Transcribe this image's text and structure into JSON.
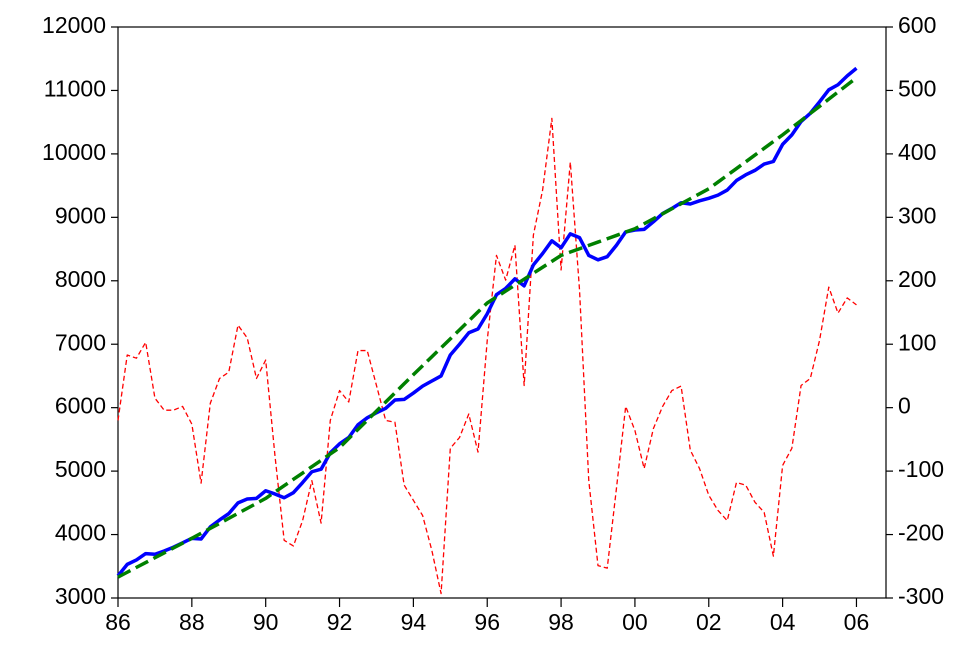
{
  "chart_data": {
    "type": "line",
    "x": [
      1986,
      1986.25,
      1986.5,
      1986.75,
      1987,
      1987.25,
      1987.5,
      1987.75,
      1988,
      1988.25,
      1988.5,
      1988.75,
      1989,
      1989.25,
      1989.5,
      1989.75,
      1990,
      1990.25,
      1990.5,
      1990.75,
      1991,
      1991.25,
      1991.5,
      1991.75,
      1992,
      1992.25,
      1992.5,
      1992.75,
      1993,
      1993.25,
      1993.5,
      1993.75,
      1994,
      1994.25,
      1994.5,
      1994.75,
      1995,
      1995.25,
      1995.5,
      1995.75,
      1996,
      1996.25,
      1996.5,
      1996.75,
      1997,
      1997.25,
      1997.5,
      1997.75,
      1998,
      1998.25,
      1998.5,
      1998.75,
      1999,
      1999.25,
      1999.5,
      1999.75,
      2000,
      2000.25,
      2000.5,
      2000.75,
      2001,
      2001.25,
      2001.5,
      2001.75,
      2002,
      2002.25,
      2002.5,
      2002.75,
      2003,
      2003.25,
      2003.5,
      2003.75,
      2004,
      2004.25,
      2004.5,
      2004.75,
      2005,
      2005.25,
      2005.5,
      2005.75,
      2006
    ],
    "series": [
      {
        "color": "#ff0000",
        "line_style": "short-dash",
        "axis": "y2",
        "values": [
          -20,
          83,
          78,
          103,
          15,
          -4,
          -4,
          2,
          -26,
          -119,
          7,
          46,
          56,
          130,
          110,
          46,
          75,
          -75,
          -209,
          -218,
          -178,
          -115,
          -182,
          -20,
          27,
          9,
          90,
          90,
          35,
          -20,
          -23,
          -122,
          -146,
          -170,
          -225,
          -293,
          -64,
          -47,
          -10,
          -70,
          106,
          240,
          201,
          256,
          35,
          272,
          343,
          456,
          217,
          387,
          185,
          -115,
          -249,
          -253,
          -127,
          2,
          -36,
          -96,
          -33,
          2,
          27,
          34,
          -67,
          -96,
          -138,
          -162,
          -178,
          -118,
          -122,
          -149,
          -165,
          -234,
          -91,
          -64,
          35,
          46,
          106,
          190,
          149,
          173,
          162
        ]
      },
      {
        "color": "#0000ff",
        "line_style": "solid",
        "axis": "y",
        "values": [
          3350,
          3530,
          3600,
          3700,
          3690,
          3740,
          3800,
          3870,
          3940,
          3930,
          4120,
          4230,
          4330,
          4500,
          4560,
          4570,
          4690,
          4640,
          4580,
          4660,
          4820,
          4990,
          5030,
          5290,
          5430,
          5530,
          5730,
          5840,
          5920,
          5990,
          6120,
          6130,
          6230,
          6340,
          6420,
          6500,
          6830,
          7000,
          7180,
          7240,
          7480,
          7780,
          7880,
          8030,
          7920,
          8250,
          8430,
          8630,
          8520,
          8740,
          8680,
          8400,
          8330,
          8380,
          8560,
          8770,
          8800,
          8810,
          8930,
          9060,
          9140,
          9230,
          9210,
          9260,
          9300,
          9350,
          9430,
          9580,
          9670,
          9740,
          9840,
          9880,
          10150,
          10300,
          10510,
          10640,
          10820,
          11010,
          11090,
          11230,
          11350
        ]
      },
      {
        "color": "#008000",
        "line_style": "long-dash",
        "axis": "y",
        "values": [
          3330,
          3406,
          3483,
          3559,
          3635,
          3711,
          3788,
          3864,
          3940,
          4019,
          4098,
          4176,
          4255,
          4334,
          4413,
          4491,
          4570,
          4670,
          4770,
          4870,
          4970,
          5070,
          5170,
          5270,
          5370,
          5514,
          5658,
          5801,
          5945,
          6089,
          6233,
          6376,
          6520,
          6661,
          6803,
          6944,
          7085,
          7226,
          7368,
          7509,
          7650,
          7744,
          7838,
          7931,
          8025,
          8119,
          8213,
          8306,
          8400,
          8453,
          8505,
          8558,
          8610,
          8663,
          8715,
          8768,
          8820,
          8899,
          8978,
          9056,
          9135,
          9214,
          9293,
          9371,
          9450,
          9556,
          9663,
          9769,
          9875,
          9981,
          10088,
          10194,
          10300,
          10413,
          10525,
          10638,
          10750,
          10863,
          10975,
          11088,
          11200
        ]
      }
    ],
    "xlim": [
      1986,
      2006.8
    ],
    "xticks": [
      {
        "value": 1986,
        "label": "86"
      },
      {
        "value": 1988,
        "label": "88"
      },
      {
        "value": 1990,
        "label": "90"
      },
      {
        "value": 1992,
        "label": "92"
      },
      {
        "value": 1994,
        "label": "94"
      },
      {
        "value": 1996,
        "label": "96"
      },
      {
        "value": 1998,
        "label": "98"
      },
      {
        "value": 2000,
        "label": "00"
      },
      {
        "value": 2002,
        "label": "02"
      },
      {
        "value": 2004,
        "label": "04"
      },
      {
        "value": 2006,
        "label": "06"
      }
    ],
    "ylim": [
      3000,
      12000
    ],
    "yticks": [
      3000,
      4000,
      5000,
      6000,
      7000,
      8000,
      9000,
      10000,
      11000,
      12000
    ],
    "y2lim": [
      -300,
      600
    ],
    "y2ticks": [
      -300,
      -200,
      -100,
      0,
      100,
      200,
      300,
      400,
      500,
      600
    ],
    "grid": false
  }
}
